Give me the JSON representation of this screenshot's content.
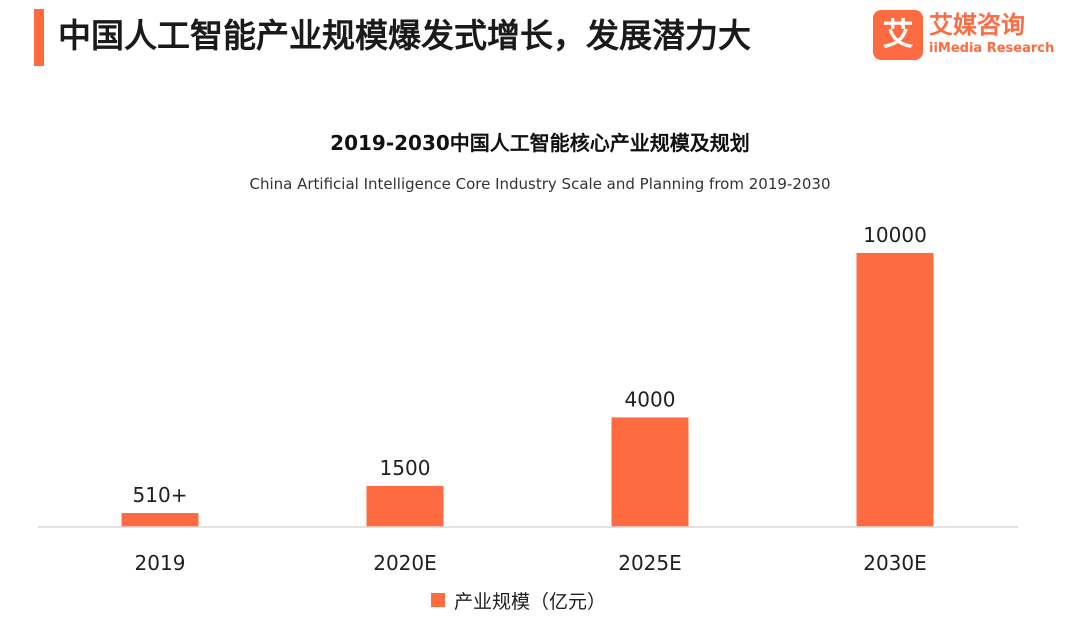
{
  "header": {
    "title": "中国人工智能产业规模爆发式增长，发展潜力大"
  },
  "logo": {
    "mark_text": "艾",
    "cn_name": "艾媒咨询",
    "en_name": "iiMedia Research"
  },
  "colors": {
    "accent": "#ff6b40",
    "bar": "#ff6b40",
    "axis": "#d9d9d9",
    "text": "#1f1f1f"
  },
  "chart_data": {
    "type": "bar",
    "title": "2019-2030中国人工智能核心产业规模及规划",
    "subtitle": "China Artificial Intelligence Core Industry Scale and Planning from 2019-2030",
    "categories": [
      "2019",
      "2020E",
      "2025E",
      "2030E"
    ],
    "values": [
      510,
      1500,
      4000,
      10000
    ],
    "data_labels": [
      "510+",
      "1500",
      "4000",
      "10000"
    ],
    "series": [
      {
        "name": "产业规模（亿元）",
        "values": [
          510,
          1500,
          4000,
          10000
        ]
      }
    ],
    "xlabel": "",
    "ylabel": "",
    "ylim": [
      0,
      10000
    ],
    "grid": false,
    "legend_position": "bottom"
  }
}
